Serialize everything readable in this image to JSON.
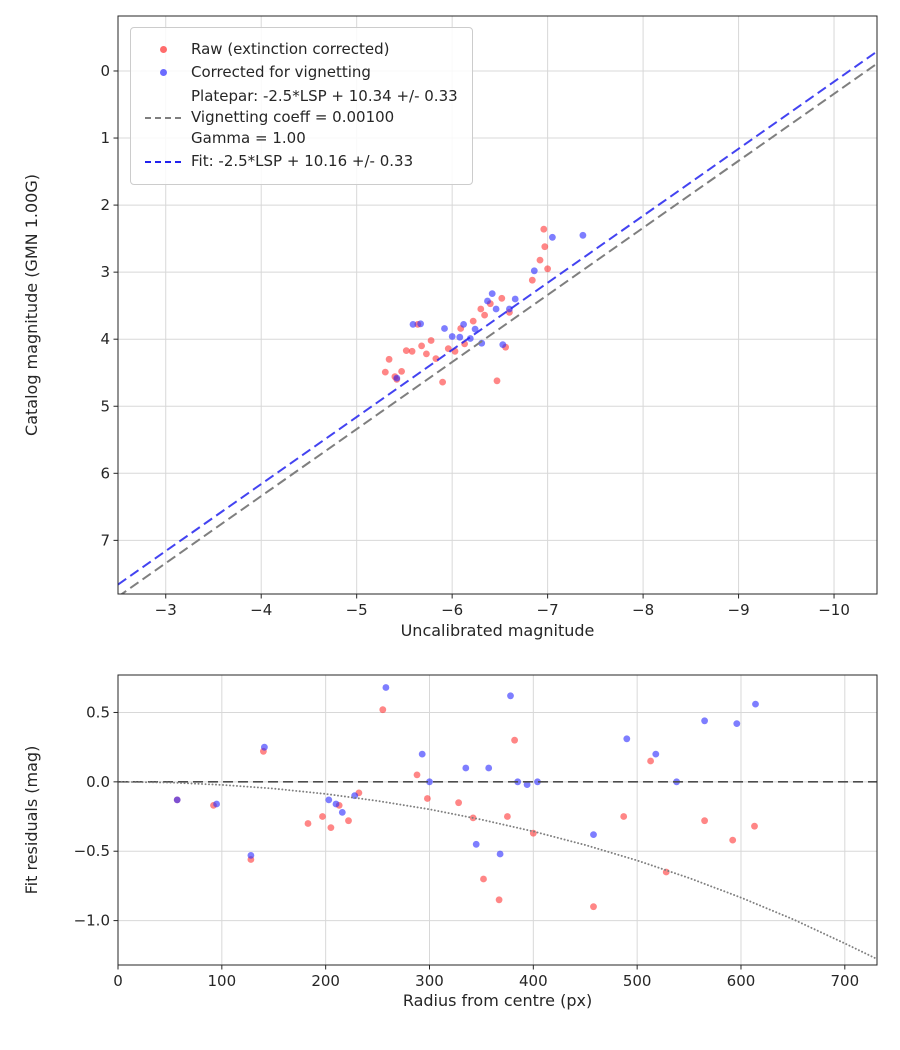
{
  "figure": {
    "background": "#ffffff",
    "legend": {
      "raw_label": "Raw (extinction corrected)",
      "corrected_label": "Corrected for vignetting",
      "platepar_lines": [
        "Platepar: -2.5*LSP + 10.34 +/- 0.33",
        "Vignetting coeff = 0.00100",
        "Gamma = 1.00"
      ],
      "fit_label": "Fit: -2.5*LSP + 10.16 +/- 0.33"
    }
  },
  "colors": {
    "raw": "#ff2e2e",
    "corrected": "#2e2eff",
    "platepar_line": "#7f7f7f",
    "fit_line": "#2222ee",
    "zero_line": "#4d4d4d",
    "vignetting_curve": "#808080",
    "grid": "#d8d8d8",
    "text": "#262626"
  },
  "chart_data": [
    {
      "type": "scatter",
      "title": "",
      "xlabel": "Uncalibrated magnitude",
      "ylabel": "Catalog magnitude (GMN 1.00G)",
      "xlim": [
        -2.5,
        -10.45
      ],
      "ylim": [
        -0.82,
        7.8
      ],
      "y_inverted": true,
      "grid": true,
      "legend_position": "upper left",
      "xticks": [
        -3,
        -4,
        -5,
        -6,
        -7,
        -8,
        -9,
        -10
      ],
      "xtick_labels": [
        "−3",
        "−4",
        "−5",
        "−6",
        "−7",
        "−8",
        "−9",
        "−10"
      ],
      "yticks": [
        0,
        1,
        2,
        3,
        4,
        5,
        6,
        7
      ],
      "ytick_labels": [
        "0",
        "1",
        "2",
        "3",
        "4",
        "5",
        "6",
        "7"
      ],
      "series": [
        {
          "name": "Raw (extinction corrected)",
          "kind": "scatter",
          "color": "#ff2e2e",
          "opacity": 0.58,
          "marker_px": 3.4,
          "points": [
            [
              -5.3,
              4.49
            ],
            [
              -5.34,
              4.3
            ],
            [
              -5.4,
              4.56
            ],
            [
              -5.42,
              4.6
            ],
            [
              -5.47,
              4.48
            ],
            [
              -5.52,
              4.17
            ],
            [
              -5.58,
              4.18
            ],
            [
              -5.64,
              3.78
            ],
            [
              -5.68,
              4.1
            ],
            [
              -5.73,
              4.22
            ],
            [
              -5.78,
              4.02
            ],
            [
              -5.83,
              4.29
            ],
            [
              -5.9,
              4.64
            ],
            [
              -5.96,
              4.14
            ],
            [
              -6.03,
              4.18
            ],
            [
              -6.09,
              3.84
            ],
            [
              -6.13,
              4.07
            ],
            [
              -6.22,
              3.73
            ],
            [
              -6.3,
              3.55
            ],
            [
              -6.34,
              3.64
            ],
            [
              -6.4,
              3.47
            ],
            [
              -6.47,
              4.62
            ],
            [
              -6.52,
              3.39
            ],
            [
              -6.56,
              4.12
            ],
            [
              -6.6,
              3.6
            ],
            [
              -6.84,
              3.12
            ],
            [
              -6.92,
              2.82
            ],
            [
              -6.96,
              2.36
            ],
            [
              -6.97,
              2.62
            ],
            [
              -7.0,
              2.95
            ]
          ]
        },
        {
          "name": "Corrected for vignetting",
          "kind": "scatter",
          "color": "#2e2eff",
          "opacity": 0.62,
          "marker_px": 3.4,
          "points": [
            [
              -5.42,
              4.58
            ],
            [
              -5.59,
              3.78
            ],
            [
              -5.67,
              3.77
            ],
            [
              -5.92,
              3.84
            ],
            [
              -6.0,
              3.96
            ],
            [
              -6.08,
              3.97
            ],
            [
              -6.12,
              3.78
            ],
            [
              -6.19,
              3.99
            ],
            [
              -6.24,
              3.85
            ],
            [
              -6.31,
              4.06
            ],
            [
              -6.37,
              3.43
            ],
            [
              -6.42,
              3.32
            ],
            [
              -6.46,
              3.55
            ],
            [
              -6.53,
              4.08
            ],
            [
              -6.6,
              3.55
            ],
            [
              -6.66,
              3.4
            ],
            [
              -6.86,
              2.98
            ],
            [
              -7.05,
              2.48
            ],
            [
              -7.37,
              2.45
            ]
          ]
        },
        {
          "name": "Platepar: -2.5*LSP + 10.34 +/- 0.33 / Vignetting coeff = 0.00100 / Gamma = 1.00",
          "kind": "line",
          "style": "dashed",
          "color": "#7f7f7f",
          "width": 2,
          "opacity": 1,
          "slope": 1,
          "intercept": 10.34
        },
        {
          "name": "Fit: -2.5*LSP + 10.16 +/- 0.33",
          "kind": "line",
          "style": "dashed",
          "color": "#2222ee",
          "width": 2,
          "opacity": 0.85,
          "slope": 1,
          "intercept": 10.16
        }
      ]
    },
    {
      "type": "scatter",
      "title": "",
      "xlabel": "Radius from centre (px)",
      "ylabel": "Fit residuals (mag)",
      "xlim": [
        0,
        731
      ],
      "ylim": [
        0.77,
        -1.32
      ],
      "grid": true,
      "xticks": [
        0,
        100,
        200,
        300,
        400,
        500,
        600,
        700
      ],
      "xtick_labels": [
        "0",
        "100",
        "200",
        "300",
        "400",
        "500",
        "600",
        "700"
      ],
      "yticks": [
        0.5,
        0.0,
        -0.5,
        -1.0
      ],
      "ytick_labels": [
        "0.5",
        "0.0",
        "−0.5",
        "−1.0"
      ],
      "series": [
        {
          "name": "Raw residuals",
          "kind": "scatter",
          "color": "#ff2e2e",
          "opacity": 0.58,
          "marker_px": 3.4,
          "points": [
            [
              57,
              -0.13
            ],
            [
              92,
              -0.17
            ],
            [
              128,
              -0.56
            ],
            [
              140,
              0.22
            ],
            [
              183,
              -0.3
            ],
            [
              197,
              -0.25
            ],
            [
              205,
              -0.33
            ],
            [
              213,
              -0.17
            ],
            [
              222,
              -0.28
            ],
            [
              232,
              -0.08
            ],
            [
              255,
              0.52
            ],
            [
              288,
              0.05
            ],
            [
              298,
              -0.12
            ],
            [
              328,
              -0.15
            ],
            [
              342,
              -0.26
            ],
            [
              352,
              -0.7
            ],
            [
              367,
              -0.85
            ],
            [
              375,
              -0.25
            ],
            [
              382,
              0.3
            ],
            [
              400,
              -0.37
            ],
            [
              458,
              -0.9
            ],
            [
              487,
              -0.25
            ],
            [
              513,
              0.15
            ],
            [
              528,
              -0.65
            ],
            [
              565,
              -0.28
            ],
            [
              592,
              -0.42
            ],
            [
              613,
              -0.32
            ]
          ]
        },
        {
          "name": "Corrected residuals",
          "kind": "scatter",
          "color": "#2e2eff",
          "opacity": 0.62,
          "marker_px": 3.4,
          "points": [
            [
              57,
              -0.13
            ],
            [
              95,
              -0.16
            ],
            [
              128,
              -0.53
            ],
            [
              141,
              0.25
            ],
            [
              203,
              -0.13
            ],
            [
              210,
              -0.16
            ],
            [
              216,
              -0.22
            ],
            [
              228,
              -0.1
            ],
            [
              258,
              0.68
            ],
            [
              293,
              0.2
            ],
            [
              300,
              0.0
            ],
            [
              335,
              0.1
            ],
            [
              345,
              -0.45
            ],
            [
              357,
              0.1
            ],
            [
              368,
              -0.52
            ],
            [
              378,
              0.62
            ],
            [
              385,
              0.0
            ],
            [
              394,
              -0.02
            ],
            [
              404,
              0.0
            ],
            [
              458,
              -0.38
            ],
            [
              490,
              0.31
            ],
            [
              518,
              0.2
            ],
            [
              538,
              0.0
            ],
            [
              565,
              0.44
            ],
            [
              596,
              0.42
            ],
            [
              614,
              0.56
            ]
          ]
        },
        {
          "name": "Zero residual line",
          "kind": "line",
          "style": "dashed",
          "color": "#4d4d4d",
          "width": 1.6,
          "opacity": 1,
          "points": [
            [
              0,
              0
            ],
            [
              731,
              0
            ]
          ]
        },
        {
          "name": "Vignetting model curve",
          "kind": "line",
          "style": "dotted",
          "color": "#808080",
          "width": 1.9,
          "opacity": 1,
          "points": [
            [
              0,
              0
            ],
            [
              50,
              -0.005
            ],
            [
              100,
              -0.022
            ],
            [
              150,
              -0.049
            ],
            [
              200,
              -0.087
            ],
            [
              250,
              -0.137
            ],
            [
              300,
              -0.198
            ],
            [
              350,
              -0.272
            ],
            [
              400,
              -0.357
            ],
            [
              450,
              -0.455
            ],
            [
              500,
              -0.567
            ],
            [
              550,
              -0.693
            ],
            [
              600,
              -0.834
            ],
            [
              650,
              -0.99
            ],
            [
              700,
              -1.164
            ],
            [
              731,
              -1.277
            ]
          ]
        }
      ]
    }
  ]
}
